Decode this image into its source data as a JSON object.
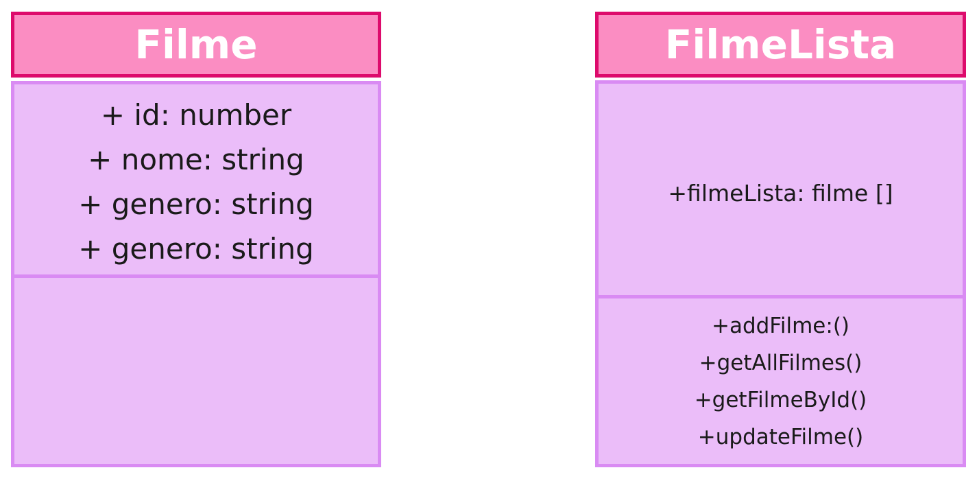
{
  "classes": [
    {
      "name": "Filme",
      "attributes": [
        "+ id: number",
        "+ nome: string",
        "+ genero: string",
        "+ genero: string"
      ],
      "methods": []
    },
    {
      "name": "FilmeLista",
      "attributes": [
        "+filmeLista: filme []"
      ],
      "methods": [
        "+addFilme:()",
        "+getAllFilmes()",
        "+getFilmeById()",
        "+updateFilme()"
      ]
    }
  ],
  "colors": {
    "header_fill": "#fb8dc2",
    "header_border": "#dd0b6c",
    "section_fill": "#ebbdf9",
    "section_border": "#d98bf3",
    "header_text": "#ffffff",
    "body_text": "#1a1a1a"
  }
}
